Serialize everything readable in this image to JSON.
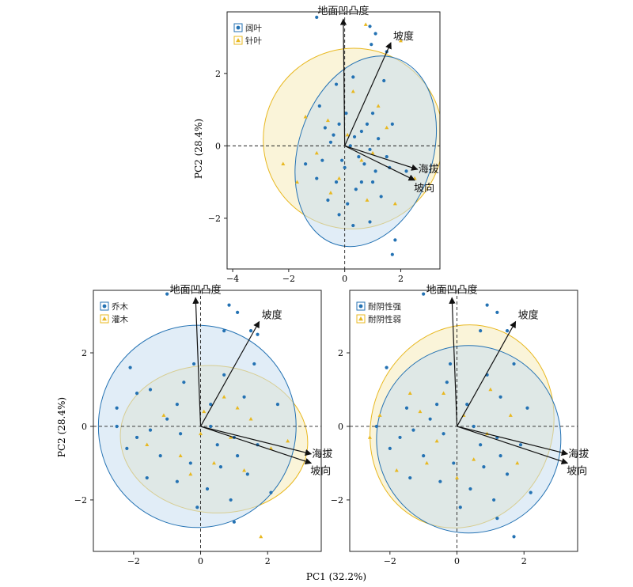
{
  "figure": {
    "x_axis_label": "PC1 (32.2%)",
    "y_axis_label": "PC2 (28.4%)"
  },
  "colors": {
    "group_a": "#2472b3",
    "group_b": "#e8b820",
    "ellipse_a_fill": "#c9dff0",
    "ellipse_b_fill": "#f7ecbf"
  },
  "chart_data": [
    {
      "type": "scatter",
      "subtype": "pca-biplot",
      "panel": "top",
      "xlim": [
        -4.2,
        3.4
      ],
      "ylim": [
        -3.4,
        3.7
      ],
      "x_ticks": [
        -4,
        -2,
        0,
        2
      ],
      "y_ticks": [
        -2,
        0,
        2
      ],
      "x_tick_labels": [
        "−4",
        "−2",
        "0",
        "2"
      ],
      "y_tick_labels": [
        "−2",
        "0",
        "2"
      ],
      "legend": {
        "position": "top-left",
        "entries": [
          "阔叶",
          "针叶"
        ]
      },
      "series": [
        {
          "name": "阔叶",
          "marker": "circle",
          "color": "#2472b3",
          "ellipse": {
            "cx": 0.75,
            "cy": -0.15,
            "rx": 2.4,
            "ry": 2.7,
            "angle": -18
          },
          "points": [
            [
              -1.0,
              3.55
            ],
            [
              0.9,
              3.3
            ],
            [
              1.1,
              3.1
            ],
            [
              1.5,
              2.6
            ],
            [
              0.95,
              2.8
            ],
            [
              -0.3,
              1.7
            ],
            [
              0.3,
              1.9
            ],
            [
              1.4,
              1.8
            ],
            [
              -0.9,
              1.1
            ],
            [
              0.05,
              0.9
            ],
            [
              1.0,
              0.9
            ],
            [
              1.7,
              0.6
            ],
            [
              -0.7,
              0.5
            ],
            [
              -0.2,
              0.6
            ],
            [
              0.6,
              0.4
            ],
            [
              1.2,
              0.2
            ],
            [
              -0.5,
              0.1
            ],
            [
              0.2,
              0.0
            ],
            [
              0.9,
              -0.1
            ],
            [
              1.5,
              -0.3
            ],
            [
              -0.8,
              -0.4
            ],
            [
              0.0,
              -0.6
            ],
            [
              0.5,
              -0.3
            ],
            [
              1.1,
              -0.7
            ],
            [
              -1.4,
              -0.5
            ],
            [
              -0.3,
              -1.0
            ],
            [
              0.4,
              -1.2
            ],
            [
              1.3,
              -1.4
            ],
            [
              -0.6,
              -1.5
            ],
            [
              0.1,
              -1.6
            ],
            [
              0.9,
              -2.1
            ],
            [
              1.8,
              -2.6
            ],
            [
              0.3,
              -2.2
            ],
            [
              -0.2,
              -1.9
            ],
            [
              0.7,
              -0.5
            ],
            [
              1.6,
              -0.6
            ],
            [
              -1.0,
              -0.9
            ],
            [
              0.6,
              -1.0
            ],
            [
              1.7,
              -3.0
            ],
            [
              -0.4,
              0.3
            ],
            [
              0.35,
              0.25
            ],
            [
              0.8,
              0.6
            ],
            [
              2.2,
              -0.7
            ],
            [
              -0.1,
              -0.4
            ],
            [
              1.0,
              -1.0
            ]
          ]
        },
        {
          "name": "针叶",
          "marker": "triangle",
          "color": "#e8b820",
          "ellipse": {
            "cx": 0.3,
            "cy": 0.2,
            "rx": 3.2,
            "ry": 2.5,
            "angle": -30
          },
          "points": [
            [
              0.75,
              3.35
            ],
            [
              2.0,
              2.9
            ],
            [
              -1.4,
              0.8
            ],
            [
              -2.2,
              -0.5
            ],
            [
              -0.5,
              -1.3
            ],
            [
              0.8,
              -1.5
            ],
            [
              1.5,
              0.5
            ],
            [
              -0.2,
              -0.9
            ],
            [
              0.3,
              1.5
            ],
            [
              -1.0,
              -0.2
            ],
            [
              0.6,
              -0.4
            ],
            [
              1.2,
              1.1
            ],
            [
              -0.6,
              0.7
            ],
            [
              2.5,
              -0.9
            ],
            [
              1.8,
              -1.6
            ],
            [
              -1.7,
              -1.0
            ],
            [
              0.1,
              0.3
            ],
            [
              1.0,
              -0.2
            ]
          ]
        }
      ],
      "loadings": [
        {
          "label": "地面凹凸度",
          "x": -0.05,
          "y": 3.5
        },
        {
          "label": "坡度",
          "x": 1.65,
          "y": 2.85
        },
        {
          "label": "海拔",
          "x": 2.6,
          "y": -0.65
        },
        {
          "label": "坡向",
          "x": 2.5,
          "y": -0.95
        }
      ]
    },
    {
      "type": "scatter",
      "subtype": "pca-biplot",
      "panel": "bottom-left",
      "xlim": [
        -3.2,
        3.6
      ],
      "ylim": [
        -3.4,
        3.7
      ],
      "x_ticks": [
        -2,
        0,
        2
      ],
      "y_ticks": [
        -2,
        0,
        2
      ],
      "x_tick_labels": [
        "−2",
        "0",
        "2"
      ],
      "y_tick_labels": [
        "−2",
        "0",
        "2"
      ],
      "legend": {
        "position": "top-left",
        "entries": [
          "乔木",
          "灌木"
        ]
      },
      "series": [
        {
          "name": "乔木",
          "marker": "circle",
          "color": "#2472b3",
          "ellipse": {
            "cx": -0.1,
            "cy": 0.0,
            "rx": 2.95,
            "ry": 2.75,
            "angle": 0
          },
          "points": [
            [
              -1.0,
              3.6
            ],
            [
              0.85,
              3.3
            ],
            [
              1.1,
              3.1
            ],
            [
              1.5,
              2.6
            ],
            [
              1.7,
              2.5
            ],
            [
              0.7,
              2.6
            ],
            [
              -0.2,
              1.7
            ],
            [
              -2.1,
              1.6
            ],
            [
              -1.5,
              1.0
            ],
            [
              -2.5,
              0.5
            ],
            [
              -1.9,
              0.9
            ],
            [
              -0.7,
              0.6
            ],
            [
              0.3,
              0.6
            ],
            [
              1.3,
              0.8
            ],
            [
              2.3,
              0.6
            ],
            [
              -2.5,
              0.0
            ],
            [
              -1.5,
              -0.1
            ],
            [
              -0.6,
              -0.2
            ],
            [
              0.3,
              0.0
            ],
            [
              1.0,
              -0.3
            ],
            [
              1.7,
              -0.5
            ],
            [
              -2.2,
              -0.6
            ],
            [
              -1.2,
              -0.8
            ],
            [
              -0.3,
              -1.0
            ],
            [
              0.6,
              -1.1
            ],
            [
              1.4,
              -1.3
            ],
            [
              -1.6,
              -1.4
            ],
            [
              -0.7,
              -1.5
            ],
            [
              0.2,
              -1.7
            ],
            [
              0.9,
              -2.0
            ],
            [
              2.1,
              -1.8
            ],
            [
              1.0,
              -2.6
            ],
            [
              -0.1,
              -2.2
            ],
            [
              0.5,
              -0.5
            ],
            [
              -1.0,
              0.2
            ],
            [
              0.7,
              1.4
            ],
            [
              1.6,
              1.7
            ],
            [
              -0.5,
              1.2
            ],
            [
              1.1,
              -0.8
            ],
            [
              -1.9,
              -0.3
            ]
          ]
        },
        {
          "name": "灌木",
          "marker": "triangle",
          "color": "#e8b820",
          "ellipse": {
            "cx": 0.4,
            "cy": -0.35,
            "rx": 2.8,
            "ry": 2.0,
            "angle": -5
          },
          "points": [
            [
              1.8,
              -3.0
            ],
            [
              -1.6,
              -0.5
            ],
            [
              0.1,
              0.4
            ],
            [
              0.9,
              -0.3
            ],
            [
              1.5,
              0.2
            ],
            [
              -0.6,
              -0.8
            ],
            [
              0.4,
              -1.0
            ],
            [
              2.1,
              -0.6
            ],
            [
              -1.1,
              0.3
            ],
            [
              0.7,
              0.8
            ],
            [
              1.3,
              -1.2
            ],
            [
              -0.3,
              -1.3
            ],
            [
              2.6,
              -0.4
            ],
            [
              0.0,
              -0.2
            ],
            [
              1.1,
              0.5
            ]
          ]
        }
      ],
      "loadings": [
        {
          "label": "地面凹凸度",
          "x": -0.15,
          "y": 3.5
        },
        {
          "label": "坡度",
          "x": 1.75,
          "y": 2.85
        },
        {
          "label": "海拔",
          "x": 3.3,
          "y": -0.75
        },
        {
          "label": "坡向",
          "x": 3.3,
          "y": -1.0
        }
      ]
    },
    {
      "type": "scatter",
      "subtype": "pca-biplot",
      "panel": "bottom-right",
      "xlim": [
        -3.2,
        3.6
      ],
      "ylim": [
        -3.4,
        3.7
      ],
      "x_ticks": [
        -2,
        0,
        2
      ],
      "y_ticks": [
        -2,
        0,
        2
      ],
      "x_tick_labels": [
        "−2",
        "0",
        "2"
      ],
      "y_tick_labels": [
        "−2",
        "0",
        "2"
      ],
      "legend": {
        "position": "top-left",
        "entries": [
          "耐阴性强",
          "耐阴性弱"
        ]
      },
      "series": [
        {
          "name": "耐阴性强",
          "marker": "circle",
          "color": "#2472b3",
          "ellipse": {
            "cx": 0.35,
            "cy": -0.35,
            "rx": 2.75,
            "ry": 2.55,
            "angle": 0
          },
          "points": [
            [
              -1.0,
              3.6
            ],
            [
              0.9,
              3.3
            ],
            [
              1.2,
              3.1
            ],
            [
              1.5,
              2.6
            ],
            [
              0.7,
              2.6
            ],
            [
              -0.2,
              1.7
            ],
            [
              -2.1,
              1.6
            ],
            [
              1.7,
              -3.0
            ],
            [
              -1.5,
              0.5
            ],
            [
              -0.6,
              0.6
            ],
            [
              0.3,
              0.6
            ],
            [
              1.3,
              0.8
            ],
            [
              2.1,
              0.5
            ],
            [
              -2.4,
              0.0
            ],
            [
              -1.3,
              -0.1
            ],
            [
              -0.4,
              -0.2
            ],
            [
              0.5,
              0.0
            ],
            [
              1.2,
              -0.3
            ],
            [
              1.9,
              -0.5
            ],
            [
              -2.0,
              -0.6
            ],
            [
              -1.0,
              -0.8
            ],
            [
              -0.1,
              -1.0
            ],
            [
              0.8,
              -1.1
            ],
            [
              1.5,
              -1.3
            ],
            [
              -1.4,
              -1.4
            ],
            [
              -0.5,
              -1.5
            ],
            [
              0.4,
              -1.7
            ],
            [
              1.1,
              -2.0
            ],
            [
              2.2,
              -1.8
            ],
            [
              1.2,
              -2.5
            ],
            [
              0.1,
              -2.2
            ],
            [
              0.7,
              -0.5
            ],
            [
              -0.8,
              0.2
            ],
            [
              0.9,
              1.4
            ],
            [
              1.7,
              1.7
            ],
            [
              -0.3,
              1.2
            ],
            [
              1.3,
              -0.8
            ],
            [
              -1.7,
              -0.3
            ]
          ]
        },
        {
          "name": "耐阴性弱",
          "marker": "triangle",
          "color": "#e8b820",
          "ellipse": {
            "cx": 0.15,
            "cy": 0.0,
            "rx": 2.7,
            "ry": 2.8,
            "angle": -20
          },
          "points": [
            [
              -2.3,
              0.3
            ],
            [
              -1.4,
              0.9
            ],
            [
              -0.6,
              -0.4
            ],
            [
              0.2,
              0.3
            ],
            [
              0.9,
              -0.2
            ],
            [
              -1.8,
              -1.2
            ],
            [
              -0.9,
              -1.0
            ],
            [
              0.5,
              -0.9
            ],
            [
              1.6,
              0.3
            ],
            [
              -1.1,
              0.4
            ],
            [
              0.0,
              -1.4
            ],
            [
              -0.4,
              0.9
            ],
            [
              1.0,
              1.0
            ],
            [
              1.8,
              -1.0
            ],
            [
              -2.6,
              -0.3
            ]
          ]
        }
      ],
      "loadings": [
        {
          "label": "地面凹凸度",
          "x": -0.15,
          "y": 3.5
        },
        {
          "label": "坡度",
          "x": 1.75,
          "y": 2.85
        },
        {
          "label": "海拔",
          "x": 3.3,
          "y": -0.75
        },
        {
          "label": "坡向",
          "x": 3.3,
          "y": -1.0
        }
      ]
    }
  ]
}
